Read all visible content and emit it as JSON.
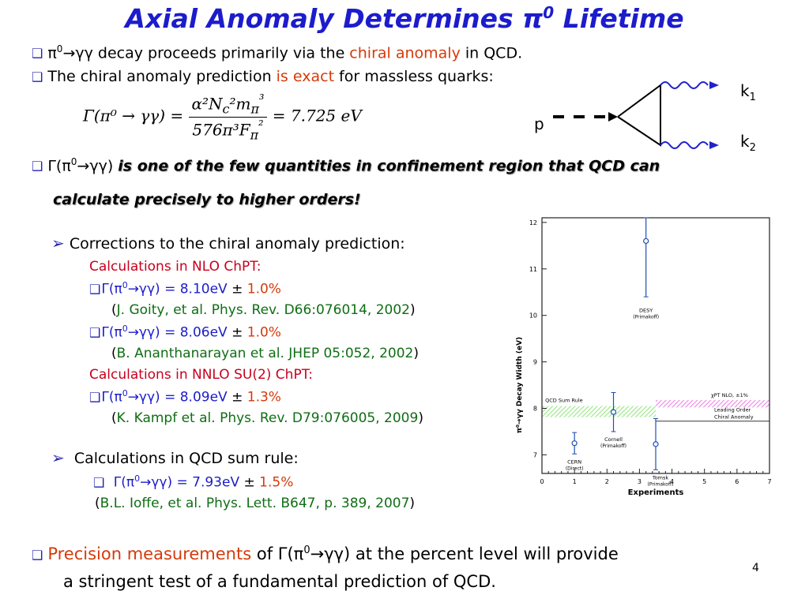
{
  "title": {
    "text": "Axial Anomaly Determines π",
    "sup": "0",
    "rest": " Lifetime"
  },
  "page_number": "4",
  "lines": {
    "l1": {
      "pre": "π",
      "sup": "0",
      "arrow": "→γγ decay proceeds primarily via the ",
      "red": "chiral anomaly",
      "post": " in  QCD."
    },
    "l2": {
      "pre": "The chiral anomaly prediction ",
      "red": "is exact",
      "post": " for massless quarks:"
    },
    "formula": {
      "lhs": "Γ(π⁰ → γγ) =",
      "num": "α²N",
      "num2": "c",
      "num3": "²m",
      "num4": "π",
      "num5": "³",
      "den": "576π³F",
      "den2": "π",
      "den3": "²",
      "rhs": "= 7.725 eV"
    },
    "l3": {
      "pre": "Γ(π",
      "sup": "0",
      "mid": "→γγ) ",
      "emph": "is one of the few quantities in confinement region that QCD can"
    },
    "l4": {
      "emph": "calculate precisely to higher orders!"
    },
    "l5": {
      "text": "Corrections to the chiral anomaly prediction:"
    },
    "l6": {
      "text": "Calculations in NLO ChPT:"
    },
    "l7": {
      "pre": "Γ(π",
      "sup": "0",
      "mid": "→γγ) = 8.10eV ",
      "pm": "±",
      "red": " 1.0%"
    },
    "l8": {
      "ref": "J. Goity, et al. Phys. Rev. D66:076014, 2002"
    },
    "l9": {
      "pre": "Γ(π",
      "sup": "0",
      "mid": "→γγ) = 8.06eV ",
      "pm": "±",
      "red": " 1.0%"
    },
    "l10": {
      "ref": "B. Ananthanarayan et al. JHEP 05:052, 2002"
    },
    "l11": {
      "text": "Calculations in NNLO SU(2) ChPT:"
    },
    "l12": {
      "pre": "Γ(π",
      "sup": "0",
      "mid": "→γγ) = 8.09eV ",
      "pm": "±",
      "red": " 1.3%"
    },
    "l13": {
      "ref": "K. Kampf et al. Phys. Rev. D79:076005, 2009"
    },
    "l14": {
      "text": "Calculations in QCD sum rule:"
    },
    "l15": {
      "pre": "Γ(π",
      "sup": "0",
      "mid": "→γγ) = 7.93eV ",
      "pm": "±",
      "red": " 1.5%"
    },
    "l16": {
      "ref": "B.L. Ioffe, et al. Phys. Lett. B647, p. 389, 2007"
    },
    "l17": {
      "red": "Precision measurements",
      "mid": " of Γ(π",
      "sup": "0",
      "post": "→γγ) at the percent level will provide"
    },
    "l18": {
      "text": "a stringent test of a fundamental prediction of QCD."
    }
  },
  "feynman": {
    "p_label": "p",
    "k1": "k",
    "k1sub": "1",
    "k2": "k",
    "k2sub": "2"
  },
  "chart_data": {
    "type": "scatter",
    "xlabel": "Experiments",
    "ylabel": "π⁰→γγ  Decay Width (eV)",
    "xlim": [
      0,
      7
    ],
    "ylim": [
      6.6,
      12.1
    ],
    "xticks": [
      "0",
      "1",
      "2",
      "3",
      "4",
      "5",
      "6",
      "7"
    ],
    "yticks": [
      "7",
      "8",
      "9",
      "10",
      "11",
      "12"
    ],
    "points": [
      {
        "x": 1.0,
        "y": 7.25,
        "err": 0.23,
        "label": "CERN",
        "sublabel": "(Direct)"
      },
      {
        "x": 2.2,
        "y": 7.92,
        "err": 0.42,
        "label": "Cornell",
        "sublabel": "(Primakoff)"
      },
      {
        "x": 3.2,
        "y": 11.6,
        "err": 1.2,
        "label": "DESY",
        "sublabel": "(Primakoff)"
      },
      {
        "x": 3.5,
        "y": 7.23,
        "err": 0.55,
        "label": "Tomsk",
        "sublabel": "(Primakoff)"
      }
    ],
    "bands": [
      {
        "label": "QCD Sum Rule",
        "x": [
          0,
          3.5
        ],
        "y": [
          7.81,
          8.05
        ],
        "color": "#9ee88e"
      },
      {
        "label": "χPT NLO, ±1%",
        "x": [
          3.5,
          7
        ],
        "y": [
          8.02,
          8.18
        ],
        "color": "#f08ce6"
      }
    ],
    "line": {
      "label": "Leading Order",
      "label2": "Chiral Anomaly",
      "x": [
        3.5,
        7
      ],
      "y": 7.725
    },
    "colors": {
      "points": "#1f4fb4",
      "axis": "#222222"
    }
  }
}
